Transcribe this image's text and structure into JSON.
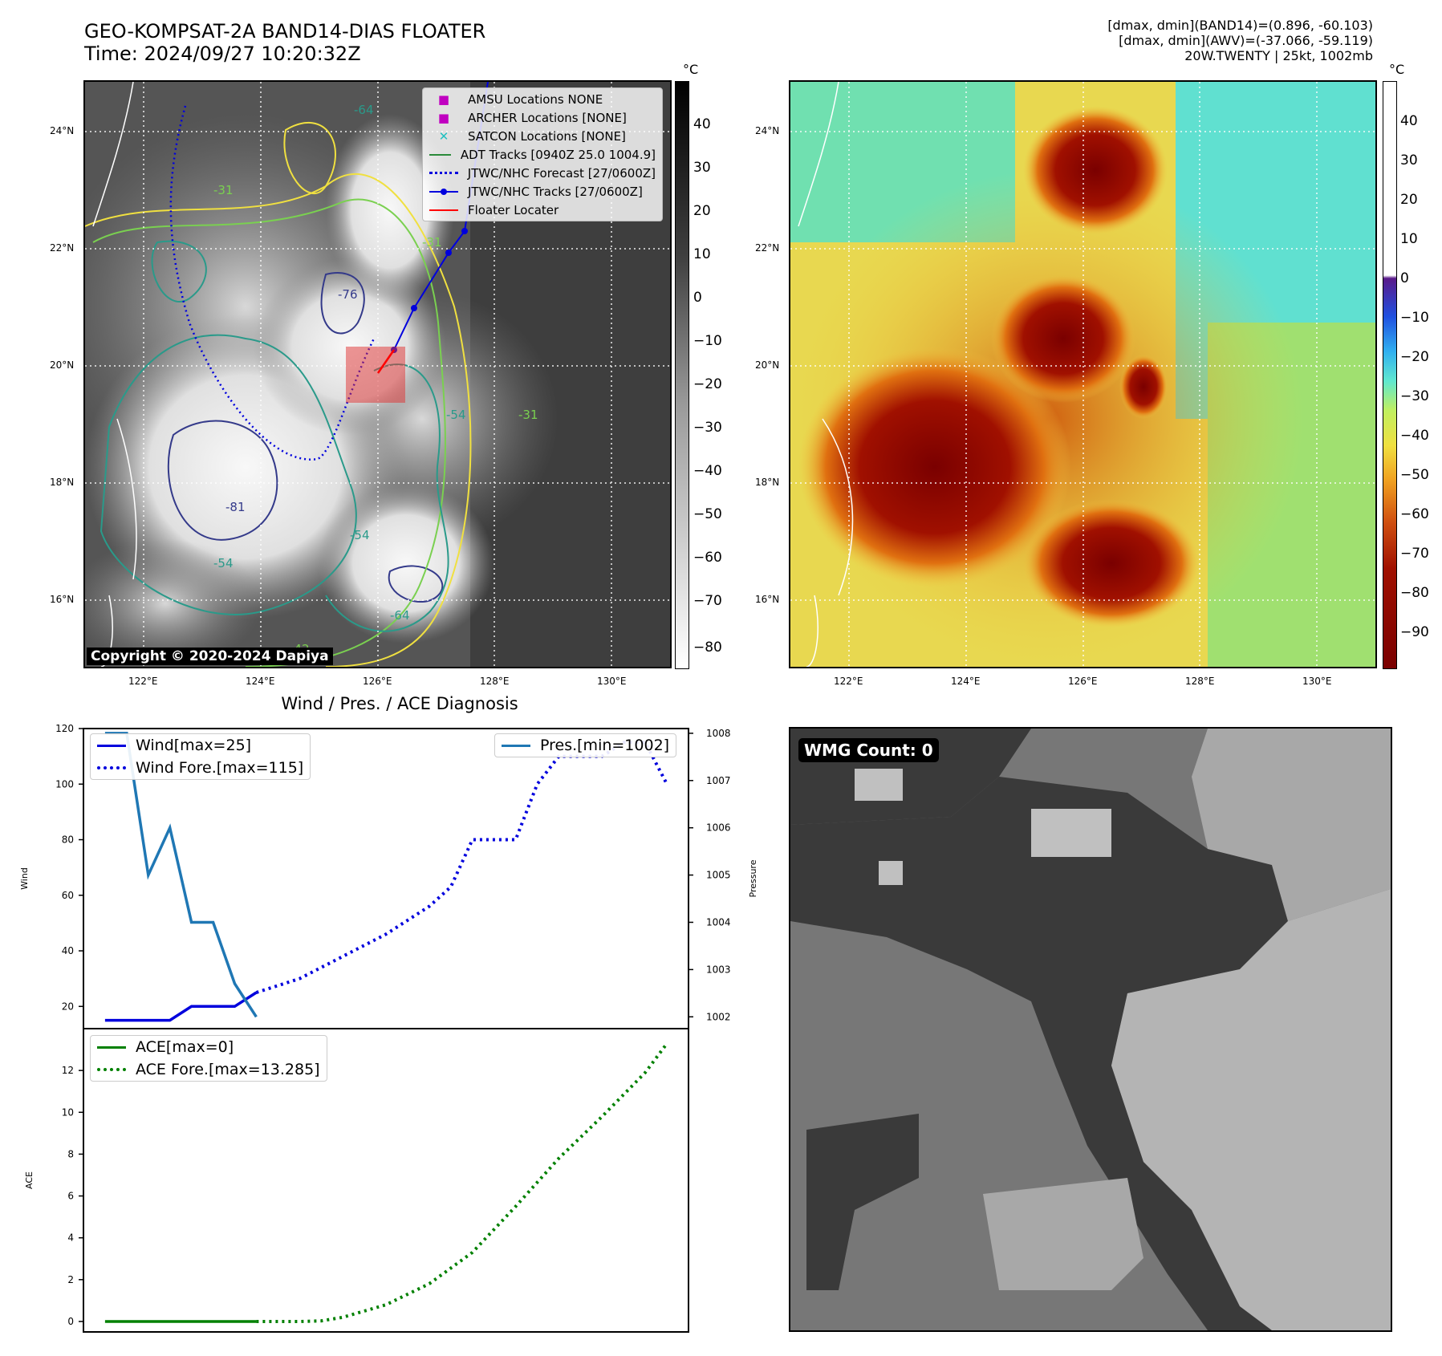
{
  "header": {
    "title_line1": "GEO-KOMPSAT-2A BAND14-DIAS FLOATER",
    "title_line2": "Time: 2024/09/27 10:20:32Z",
    "info_line1": "[dmax, dmin](BAND14)=(0.896, -60.103)",
    "info_line2": "[dmax, dmin](AWV)=(-37.066, -59.119)",
    "info_line3": "20W.TWENTY | 25kt, 1002mb"
  },
  "map_ir": {
    "lat_labels": [
      "24°N",
      "22°N",
      "20°N",
      "18°N",
      "16°N"
    ],
    "lon_labels": [
      "122°E",
      "124°E",
      "126°E",
      "128°E",
      "130°E"
    ],
    "copyright": "Copyright © 2020-2024 Dapiya",
    "contour_labels": [
      "-64",
      "-31",
      "-76",
      "-54",
      "-81",
      "-31",
      "-54",
      "-64",
      "-54",
      "-31",
      "-42"
    ],
    "legend": [
      {
        "label": "AMSU Locations NONE",
        "color": "#c000c0"
      },
      {
        "label": "ARCHER Locations [NONE]",
        "color": "#c000c0"
      },
      {
        "label": "SATCON Locations [NONE]",
        "color": "#20c0c0"
      },
      {
        "label": "ADT Tracks [0940Z 25.0 1004.9]",
        "color": "#2a8a3a"
      },
      {
        "label": "JTWC/NHC Forecast [27/0600Z]",
        "color": "#0000dd"
      },
      {
        "label": "JTWC/NHC Tracks [27/0600Z]",
        "color": "#0000dd"
      },
      {
        "label": "Floater Locater",
        "color": "#ff0000"
      }
    ],
    "colorbar": {
      "unit": "°C",
      "ticks": [
        "40",
        "30",
        "20",
        "10",
        "0",
        "−10",
        "−20",
        "−30",
        "−40",
        "−50",
        "−60",
        "−70",
        "−80"
      ]
    }
  },
  "map_awv": {
    "lat_labels": [
      "24°N",
      "22°N",
      "20°N",
      "18°N",
      "16°N"
    ],
    "lon_labels": [
      "122°E",
      "124°E",
      "126°E",
      "128°E",
      "130°E"
    ],
    "colorbar": {
      "unit": "°C",
      "ticks": [
        "40",
        "30",
        "20",
        "10",
        "0",
        "−10",
        "−20",
        "−30",
        "−40",
        "−50",
        "−60",
        "−70",
        "−80",
        "−90"
      ]
    }
  },
  "wmg": {
    "label": "WMG Count: 0"
  },
  "chart_data": [
    {
      "type": "line",
      "title": "Wind / Pres. / ACE Diagnosis",
      "ylabel": "Wind",
      "y2label": "Pressure",
      "ylim": [
        12,
        120
      ],
      "y2lim": [
        1001.75,
        1008.1
      ],
      "yticks": [
        "120",
        "100",
        "80",
        "60",
        "40",
        "20"
      ],
      "y2ticks": [
        "1008",
        "1007",
        "1006",
        "1005",
        "1004",
        "1003",
        "1002"
      ],
      "x_range": [
        0,
        28
      ],
      "series": [
        {
          "name": "Wind[max=25]",
          "axis": "left",
          "style": "solid",
          "color": "#0000dd",
          "x": [
            1,
            4,
            5,
            7,
            8
          ],
          "values": [
            15,
            15,
            20,
            20,
            25
          ]
        },
        {
          "name": "Wind Fore.[max=115]",
          "axis": "left",
          "style": "dotted",
          "color": "#0000dd",
          "x": [
            8,
            10,
            12,
            14,
            16,
            17,
            18,
            19,
            20,
            21,
            22,
            23,
            24,
            25,
            26,
            27
          ],
          "values": [
            25,
            30,
            38,
            46,
            56,
            63,
            80,
            80,
            80,
            100,
            110,
            110,
            110,
            115,
            115,
            100
          ]
        },
        {
          "name": "Pres.[min=1002]",
          "axis": "right",
          "style": "solid",
          "color": "#1f77b4",
          "x": [
            1,
            2,
            3,
            4,
            5,
            6,
            7,
            8
          ],
          "values": [
            1008,
            1008,
            1005,
            1006,
            1004,
            1004,
            1002.7,
            1002
          ]
        }
      ]
    },
    {
      "type": "line",
      "ylabel": "ACE",
      "ylim": [
        -0.5,
        14
      ],
      "yticks": [
        "12",
        "10",
        "8",
        "6",
        "4",
        "2",
        "0"
      ],
      "x_range": [
        0,
        28
      ],
      "series": [
        {
          "name": "ACE[max=0]",
          "style": "solid",
          "color": "#008000",
          "x": [
            1,
            8
          ],
          "values": [
            0,
            0
          ]
        },
        {
          "name": "ACE Fore.[max=13.285]",
          "style": "dotted",
          "color": "#008000",
          "x": [
            8,
            10,
            11,
            12,
            14,
            16,
            18,
            20,
            22,
            24,
            26,
            27
          ],
          "values": [
            0,
            0,
            0.03,
            0.2,
            0.8,
            1.8,
            3.3,
            5.5,
            7.8,
            9.8,
            11.9,
            13.285
          ]
        }
      ]
    }
  ]
}
